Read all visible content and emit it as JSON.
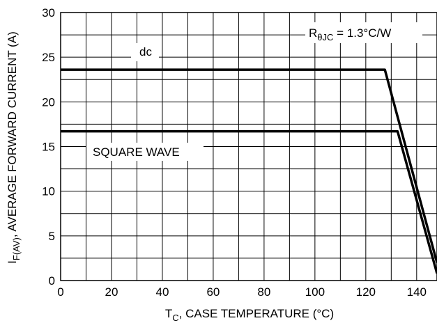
{
  "chart_data": {
    "type": "line",
    "title": "",
    "xlabel": "T_C, CASE TEMPERATURE (°C)",
    "ylabel": "I_F(AV), AVERAGE FORWARD CURRENT (A)",
    "xlim": [
      0,
      148
    ],
    "ylim": [
      0,
      30
    ],
    "x_ticks": [
      0,
      20,
      40,
      60,
      80,
      100,
      120,
      140
    ],
    "y_ticks": [
      0,
      5,
      10,
      15,
      20,
      25,
      30
    ],
    "grid": true,
    "series": [
      {
        "name": "dc",
        "points": [
          [
            0,
            23.6
          ],
          [
            127.5,
            23.6
          ],
          [
            148,
            2.0
          ]
        ]
      },
      {
        "name": "SQUARE WAVE",
        "points": [
          [
            0,
            16.7
          ],
          [
            132.5,
            16.7
          ],
          [
            148,
            0.8
          ]
        ]
      }
    ],
    "annotations": {
      "rthjc_prefix": "R",
      "rthjc_sub": "θJC",
      "rthjc_suffix": " = 1.3°C/W"
    },
    "axis_text": {
      "x_main": "T",
      "x_sub": "C",
      "x_rest": ", CASE TEMPERATURE (°C)",
      "y_main": "I",
      "y_sub": "F(AV)",
      "y_rest": ", AVERAGE FORWARD CURRENT (A)"
    },
    "line_color": "#000000"
  }
}
